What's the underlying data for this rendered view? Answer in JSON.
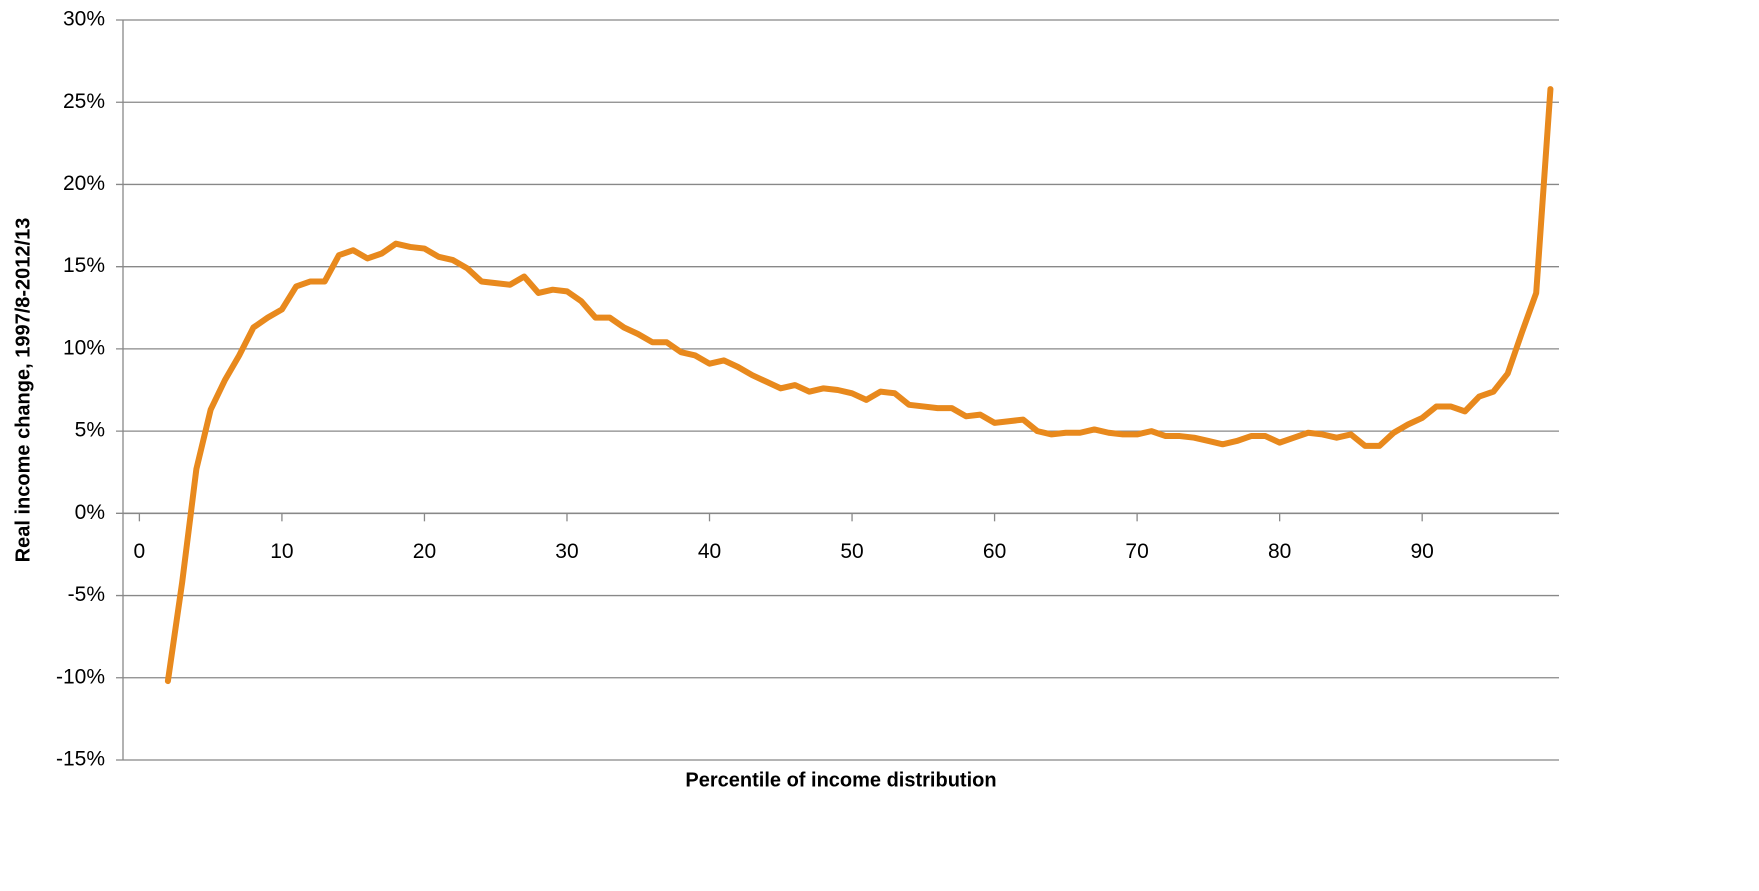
{
  "chart_data": {
    "type": "line",
    "x_label": "Percentile of income distribution",
    "y_label": "Real income change, 1997/8-2012/13",
    "x": [
      2,
      3,
      4,
      5,
      6,
      7,
      8,
      9,
      10,
      11,
      12,
      13,
      14,
      15,
      16,
      17,
      18,
      19,
      20,
      21,
      22,
      23,
      24,
      25,
      26,
      27,
      28,
      29,
      30,
      31,
      32,
      33,
      34,
      35,
      36,
      37,
      38,
      39,
      40,
      41,
      42,
      43,
      44,
      45,
      46,
      47,
      48,
      49,
      50,
      51,
      52,
      53,
      54,
      55,
      56,
      57,
      58,
      59,
      60,
      61,
      62,
      63,
      64,
      65,
      66,
      67,
      68,
      69,
      70,
      71,
      72,
      73,
      74,
      75,
      76,
      77,
      78,
      79,
      80,
      81,
      82,
      83,
      84,
      85,
      86,
      87,
      88,
      89,
      90,
      91,
      92,
      93,
      94,
      95,
      96,
      97,
      98,
      99
    ],
    "series": [
      {
        "color": "#e8891d",
        "values": [
          -10.2,
          -4.2,
          2.7,
          6.3,
          8.1,
          9.6,
          11.3,
          11.9,
          12.4,
          13.8,
          14.1,
          14.1,
          15.7,
          16.0,
          15.5,
          15.8,
          16.4,
          16.2,
          16.1,
          15.6,
          15.4,
          14.9,
          14.1,
          14.0,
          13.9,
          14.4,
          13.4,
          13.6,
          13.5,
          12.9,
          11.9,
          11.9,
          11.3,
          10.9,
          10.4,
          10.4,
          9.8,
          9.6,
          9.1,
          9.3,
          8.9,
          8.4,
          8.0,
          7.6,
          7.8,
          7.4,
          7.6,
          7.5,
          7.3,
          6.9,
          7.4,
          7.3,
          6.6,
          6.5,
          6.4,
          6.4,
          5.9,
          6.0,
          5.5,
          5.6,
          5.7,
          5.0,
          4.8,
          4.9,
          4.9,
          5.1,
          4.9,
          4.8,
          4.8,
          5.0,
          4.7,
          4.7,
          4.6,
          4.4,
          4.2,
          4.4,
          4.7,
          4.7,
          4.3,
          4.6,
          4.9,
          4.8,
          4.6,
          4.8,
          4.1,
          4.1,
          4.9,
          5.4,
          5.8,
          6.5,
          6.5,
          6.2,
          7.1,
          7.4,
          8.5,
          11.0,
          13.4,
          25.8
        ]
      }
    ],
    "xlim": [
      -1.15,
      99.6
    ],
    "xticks": [
      0,
      10,
      20,
      30,
      40,
      50,
      60,
      70,
      80,
      90
    ],
    "ylim": [
      -15,
      30
    ],
    "yticks": [
      {
        "value": -15,
        "label": "-15%"
      },
      {
        "value": -10,
        "label": "-10%"
      },
      {
        "value": -5,
        "label": "-5%"
      },
      {
        "value": 0,
        "label": "0%"
      },
      {
        "value": 5,
        "label": "5%"
      },
      {
        "value": 10,
        "label": "10%"
      },
      {
        "value": 15,
        "label": "15%"
      },
      {
        "value": 20,
        "label": "20%"
      },
      {
        "value": 25,
        "label": "25%"
      },
      {
        "value": 30,
        "label": "30%"
      }
    ],
    "grid": true
  }
}
